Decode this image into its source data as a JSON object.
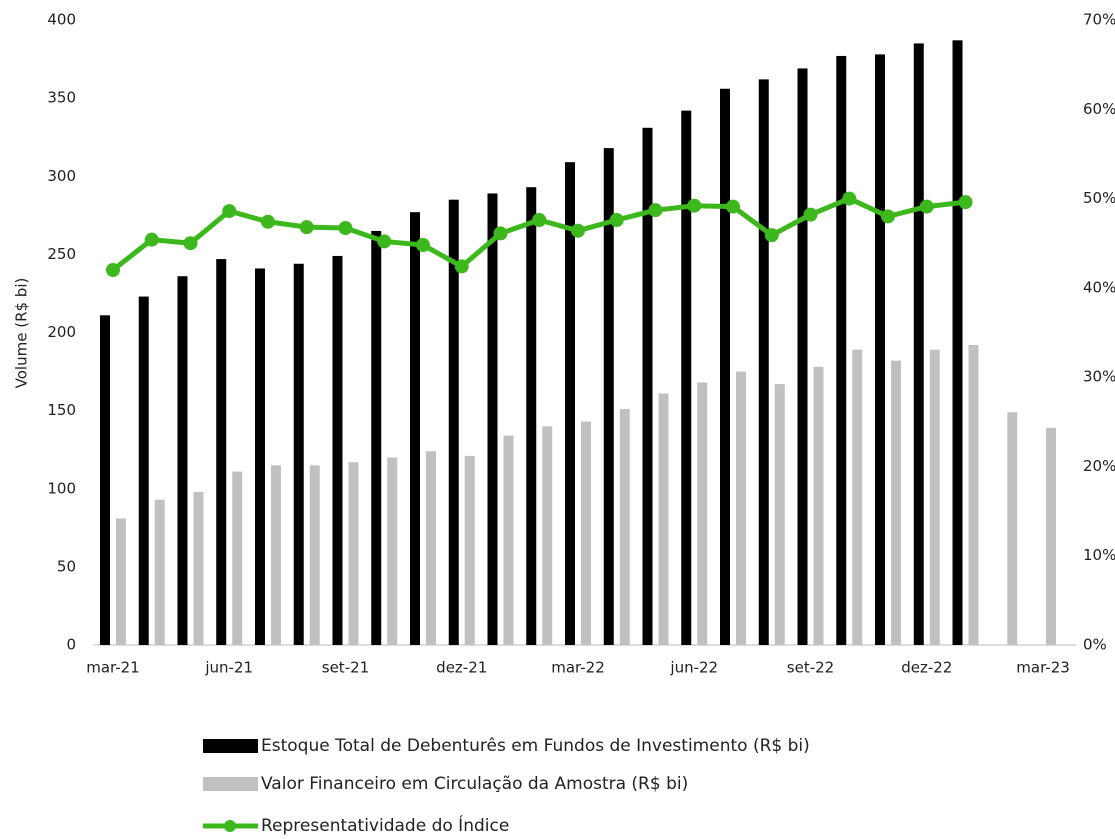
{
  "chart_data": {
    "type": "bar_line",
    "y_label": "Volume (R$ bi)",
    "categories": [
      "mar-21",
      null,
      null,
      "jun-21",
      null,
      null,
      "set-21",
      null,
      null,
      "dez-21",
      null,
      null,
      "mar-22",
      null,
      null,
      "jun-22",
      null,
      null,
      "set-22",
      null,
      null,
      "dez-22",
      null,
      null,
      "mar-23"
    ],
    "series": [
      {
        "name": "Estoque Total de Debenturês em Fundos de Investimento (R$ bi)",
        "color": "#000000",
        "kind": "bar",
        "values": [
          211,
          223,
          236,
          247,
          241,
          244,
          249,
          265,
          277,
          285,
          289,
          293,
          309,
          318,
          331,
          342,
          356,
          362,
          369,
          377,
          378,
          385,
          387,
          null,
          null
        ]
      },
      {
        "name": "Valor Financeiro em Circulação da Amostra (R$ bi)",
        "color": "#c0c0c0",
        "kind": "bar",
        "values": [
          81,
          93,
          98,
          111,
          115,
          115,
          117,
          120,
          124,
          121,
          134,
          140,
          143,
          151,
          161,
          168,
          175,
          167,
          178,
          189,
          182,
          189,
          192,
          149,
          139
        ]
      },
      {
        "name": "Representatividade do Índice",
        "color": "#3db81c",
        "kind": "line",
        "axis": "y2",
        "values": [
          42.0,
          45.4,
          45.0,
          48.6,
          47.4,
          46.8,
          46.7,
          45.2,
          44.8,
          42.4,
          46.1,
          47.6,
          46.4,
          47.6,
          48.7,
          49.2,
          49.1,
          45.9,
          48.2,
          50.0,
          48.0,
          49.1,
          49.6,
          null,
          null
        ]
      }
    ],
    "ylim": [
      0,
      400
    ],
    "yticks": [
      0,
      50,
      100,
      150,
      200,
      250,
      300,
      350,
      400
    ],
    "y2lim": [
      0,
      70
    ],
    "y2ticks": [
      {
        "value": 0,
        "label": "0%"
      },
      {
        "value": 10,
        "label": "10%"
      },
      {
        "value": 20,
        "label": "20%"
      },
      {
        "value": 30,
        "label": "30%"
      },
      {
        "value": 40,
        "label": "40%"
      },
      {
        "value": 50,
        "label": "50%"
      },
      {
        "value": 60,
        "label": "60%"
      },
      {
        "value": 70,
        "label": "70%"
      }
    ]
  }
}
